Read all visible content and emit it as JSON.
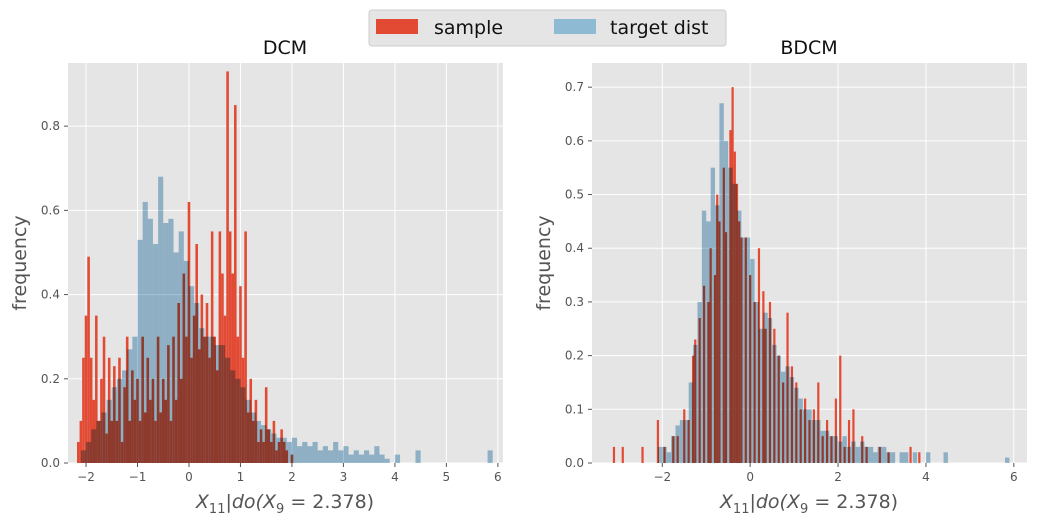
{
  "legend": {
    "items": [
      {
        "label": "sample",
        "color": "#E24A33"
      },
      {
        "label": "target dist",
        "color": "#8EBAD3"
      }
    ]
  },
  "chart_data": [
    {
      "type": "bar",
      "title": "DCM",
      "xlabel": "X_11 | do(X_9 = 2.378)",
      "xlabel_math": {
        "var": "X",
        "sub": "11",
        "mid": "|do(",
        "var2": "X",
        "sub2": "9",
        "tail": " = 2.378)"
      },
      "ylabel": "frequency",
      "xlim": [
        -2.35,
        6.1
      ],
      "ylim": [
        0,
        0.95
      ],
      "xticks": [
        -2,
        -1,
        0,
        1,
        2,
        3,
        4,
        5,
        6
      ],
      "yticks": [
        0.0,
        0.2,
        0.4,
        0.6,
        0.8
      ],
      "series": [
        {
          "name": "sample",
          "color": "#E24A33",
          "bins": [
            [
              -2.15,
              0.05
            ],
            [
              -2.1,
              0.1
            ],
            [
              -2.05,
              0.25
            ],
            [
              -2.0,
              0.35
            ],
            [
              -1.95,
              0.49
            ],
            [
              -1.9,
              0.25
            ],
            [
              -1.85,
              0.15
            ],
            [
              -1.8,
              0.35
            ],
            [
              -1.75,
              0.1
            ],
            [
              -1.7,
              0.2
            ],
            [
              -1.65,
              0.3
            ],
            [
              -1.6,
              0.07
            ],
            [
              -1.55,
              0.25
            ],
            [
              -1.5,
              0.1
            ],
            [
              -1.45,
              0.23
            ],
            [
              -1.4,
              0.1
            ],
            [
              -1.35,
              0.25
            ],
            [
              -1.3,
              0.05
            ],
            [
              -1.25,
              0.18
            ],
            [
              -1.2,
              0.3
            ],
            [
              -1.15,
              0.1
            ],
            [
              -1.1,
              0.22
            ],
            [
              -1.05,
              0.15
            ],
            [
              -1.0,
              0.2
            ],
            [
              -0.95,
              0.1
            ],
            [
              -0.9,
              0.3
            ],
            [
              -0.85,
              0.12
            ],
            [
              -0.8,
              0.25
            ],
            [
              -0.75,
              0.15
            ],
            [
              -0.7,
              0.2
            ],
            [
              -0.65,
              0.1
            ],
            [
              -0.6,
              0.3
            ],
            [
              -0.55,
              0.12
            ],
            [
              -0.5,
              0.2
            ],
            [
              -0.45,
              0.15
            ],
            [
              -0.4,
              0.28
            ],
            [
              -0.35,
              0.1
            ],
            [
              -0.3,
              0.3
            ],
            [
              -0.25,
              0.15
            ],
            [
              -0.2,
              0.38
            ],
            [
              -0.15,
              0.2
            ],
            [
              -0.1,
              0.45
            ],
            [
              -0.05,
              0.3
            ],
            [
              0.0,
              0.62
            ],
            [
              0.05,
              0.25
            ],
            [
              0.1,
              0.35
            ],
            [
              0.15,
              0.52
            ],
            [
              0.2,
              0.27
            ],
            [
              0.25,
              0.4
            ],
            [
              0.3,
              0.3
            ],
            [
              0.35,
              0.38
            ],
            [
              0.4,
              0.25
            ],
            [
              0.45,
              0.55
            ],
            [
              0.5,
              0.3
            ],
            [
              0.55,
              0.22
            ],
            [
              0.6,
              0.55
            ],
            [
              0.65,
              0.45
            ],
            [
              0.7,
              0.35
            ],
            [
              0.75,
              0.93
            ],
            [
              0.8,
              0.55
            ],
            [
              0.85,
              0.45
            ],
            [
              0.9,
              0.85
            ],
            [
              0.95,
              0.3
            ],
            [
              1.0,
              0.42
            ],
            [
              1.05,
              0.25
            ],
            [
              1.1,
              0.55
            ],
            [
              1.15,
              0.12
            ],
            [
              1.2,
              0.2
            ],
            [
              1.25,
              0.1
            ],
            [
              1.3,
              0.15
            ],
            [
              1.35,
              0.05
            ],
            [
              1.4,
              0.08
            ],
            [
              1.45,
              0.05
            ],
            [
              1.5,
              0.18
            ],
            [
              1.55,
              0.08
            ],
            [
              1.6,
              0.05
            ],
            [
              1.65,
              0.1
            ],
            [
              1.7,
              0.03
            ],
            [
              1.75,
              0.05
            ],
            [
              1.8,
              0.08
            ],
            [
              1.85,
              0.05
            ],
            [
              1.9,
              0.03
            ],
            [
              2.0,
              0.02
            ]
          ]
        },
        {
          "name": "target dist",
          "color": "#8EBAD3",
          "bins": [
            [
              -2.05,
              0.03
            ],
            [
              -1.95,
              0.05
            ],
            [
              -1.85,
              0.08
            ],
            [
              -1.75,
              0.1
            ],
            [
              -1.65,
              0.12
            ],
            [
              -1.55,
              0.15
            ],
            [
              -1.45,
              0.18
            ],
            [
              -1.35,
              0.2
            ],
            [
              -1.25,
              0.22
            ],
            [
              -1.15,
              0.27
            ],
            [
              -1.05,
              0.3
            ],
            [
              -0.95,
              0.53
            ],
            [
              -0.85,
              0.62
            ],
            [
              -0.75,
              0.58
            ],
            [
              -0.65,
              0.52
            ],
            [
              -0.55,
              0.68
            ],
            [
              -0.45,
              0.57
            ],
            [
              -0.35,
              0.58
            ],
            [
              -0.25,
              0.5
            ],
            [
              -0.15,
              0.55
            ],
            [
              -0.05,
              0.48
            ],
            [
              0.05,
              0.42
            ],
            [
              0.15,
              0.38
            ],
            [
              0.25,
              0.32
            ],
            [
              0.35,
              0.3
            ],
            [
              0.45,
              0.3
            ],
            [
              0.55,
              0.28
            ],
            [
              0.65,
              0.28
            ],
            [
              0.75,
              0.25
            ],
            [
              0.85,
              0.22
            ],
            [
              0.95,
              0.2
            ],
            [
              1.05,
              0.18
            ],
            [
              1.15,
              0.15
            ],
            [
              1.25,
              0.12
            ],
            [
              1.35,
              0.1
            ],
            [
              1.45,
              0.09
            ],
            [
              1.55,
              0.08
            ],
            [
              1.65,
              0.07
            ],
            [
              1.75,
              0.06
            ],
            [
              1.85,
              0.06
            ],
            [
              1.95,
              0.05
            ],
            [
              2.05,
              0.06
            ],
            [
              2.15,
              0.04
            ],
            [
              2.25,
              0.05
            ],
            [
              2.35,
              0.04
            ],
            [
              2.45,
              0.05
            ],
            [
              2.55,
              0.03
            ],
            [
              2.65,
              0.04
            ],
            [
              2.75,
              0.03
            ],
            [
              2.85,
              0.05
            ],
            [
              2.95,
              0.03
            ],
            [
              3.05,
              0.04
            ],
            [
              3.15,
              0.02
            ],
            [
              3.25,
              0.03
            ],
            [
              3.35,
              0.02
            ],
            [
              3.45,
              0.03
            ],
            [
              3.55,
              0.02
            ],
            [
              3.65,
              0.04
            ],
            [
              3.75,
              0.02
            ],
            [
              3.85,
              0.01
            ],
            [
              4.05,
              0.02
            ],
            [
              4.45,
              0.03
            ],
            [
              5.85,
              0.03
            ]
          ]
        }
      ]
    },
    {
      "type": "bar",
      "title": "BDCM",
      "xlabel": "X_11 | do(X_9 = 2.378)",
      "xlabel_math": {
        "var": "X",
        "sub": "11",
        "mid": "|do(",
        "var2": "X",
        "sub2": "9",
        "tail": " = 2.378)"
      },
      "ylabel": "frequency",
      "xlim": [
        -3.6,
        6.3
      ],
      "ylim": [
        0,
        0.745
      ],
      "xticks": [
        -2,
        0,
        2,
        4,
        6
      ],
      "yticks": [
        0.0,
        0.1,
        0.2,
        0.3,
        0.4,
        0.5,
        0.6,
        0.7
      ],
      "series": [
        {
          "name": "sample",
          "color": "#E24A33",
          "bins": [
            [
              -3.1,
              0.03
            ],
            [
              -2.9,
              0.03
            ],
            [
              -2.45,
              0.03
            ],
            [
              -2.1,
              0.08
            ],
            [
              -1.95,
              0.03
            ],
            [
              -1.75,
              0.05
            ],
            [
              -1.65,
              0.05
            ],
            [
              -1.5,
              0.1
            ],
            [
              -1.4,
              0.08
            ],
            [
              -1.3,
              0.2
            ],
            [
              -1.25,
              0.23
            ],
            [
              -1.15,
              0.27
            ],
            [
              -1.05,
              0.33
            ],
            [
              -0.95,
              0.3
            ],
            [
              -0.9,
              0.4
            ],
            [
              -0.8,
              0.35
            ],
            [
              -0.75,
              0.5
            ],
            [
              -0.7,
              0.45
            ],
            [
              -0.6,
              0.55
            ],
            [
              -0.55,
              0.43
            ],
            [
              -0.45,
              0.62
            ],
            [
              -0.4,
              0.7
            ],
            [
              -0.35,
              0.58
            ],
            [
              -0.3,
              0.52
            ],
            [
              -0.25,
              0.45
            ],
            [
              -0.2,
              0.42
            ],
            [
              -0.1,
              0.42
            ],
            [
              0.0,
              0.35
            ],
            [
              0.1,
              0.3
            ],
            [
              0.2,
              0.4
            ],
            [
              0.3,
              0.32
            ],
            [
              0.35,
              0.25
            ],
            [
              0.45,
              0.3
            ],
            [
              0.55,
              0.25
            ],
            [
              0.65,
              0.2
            ],
            [
              0.75,
              0.15
            ],
            [
              0.85,
              0.28
            ],
            [
              0.95,
              0.18
            ],
            [
              1.05,
              0.15
            ],
            [
              1.15,
              0.1
            ],
            [
              1.25,
              0.12
            ],
            [
              1.35,
              0.08
            ],
            [
              1.45,
              0.1
            ],
            [
              1.55,
              0.15
            ],
            [
              1.65,
              0.05
            ],
            [
              1.75,
              0.08
            ],
            [
              1.85,
              0.05
            ],
            [
              1.95,
              0.12
            ],
            [
              2.05,
              0.2
            ],
            [
              2.15,
              0.03
            ],
            [
              2.25,
              0.08
            ],
            [
              2.35,
              0.1
            ],
            [
              2.55,
              0.05
            ],
            [
              2.65,
              0.03
            ],
            [
              2.95,
              0.03
            ],
            [
              3.15,
              0.02
            ],
            [
              3.65,
              0.03
            ],
            [
              3.85,
              0.02
            ]
          ]
        },
        {
          "name": "target dist",
          "color": "#8EBAD3",
          "bins": [
            [
              -2.05,
              0.03
            ],
            [
              -1.95,
              0.03
            ],
            [
              -1.85,
              0.02
            ],
            [
              -1.75,
              0.05
            ],
            [
              -1.65,
              0.07
            ],
            [
              -1.55,
              0.08
            ],
            [
              -1.45,
              0.08
            ],
            [
              -1.35,
              0.15
            ],
            [
              -1.25,
              0.22
            ],
            [
              -1.15,
              0.3
            ],
            [
              -1.05,
              0.47
            ],
            [
              -0.95,
              0.45
            ],
            [
              -0.85,
              0.55
            ],
            [
              -0.75,
              0.48
            ],
            [
              -0.65,
              0.67
            ],
            [
              -0.55,
              0.6
            ],
            [
              -0.45,
              0.55
            ],
            [
              -0.35,
              0.52
            ],
            [
              -0.25,
              0.47
            ],
            [
              -0.15,
              0.42
            ],
            [
              -0.05,
              0.42
            ],
            [
              0.05,
              0.38
            ],
            [
              0.15,
              0.3
            ],
            [
              0.25,
              0.25
            ],
            [
              0.35,
              0.28
            ],
            [
              0.45,
              0.27
            ],
            [
              0.55,
              0.22
            ],
            [
              0.65,
              0.2
            ],
            [
              0.75,
              0.17
            ],
            [
              0.85,
              0.18
            ],
            [
              0.95,
              0.16
            ],
            [
              1.05,
              0.14
            ],
            [
              1.15,
              0.12
            ],
            [
              1.25,
              0.1
            ],
            [
              1.35,
              0.1
            ],
            [
              1.45,
              0.08
            ],
            [
              1.55,
              0.08
            ],
            [
              1.65,
              0.06
            ],
            [
              1.75,
              0.06
            ],
            [
              1.85,
              0.05
            ],
            [
              1.95,
              0.05
            ],
            [
              2.05,
              0.04
            ],
            [
              2.15,
              0.05
            ],
            [
              2.25,
              0.03
            ],
            [
              2.35,
              0.04
            ],
            [
              2.45,
              0.03
            ],
            [
              2.55,
              0.04
            ],
            [
              2.65,
              0.03
            ],
            [
              2.75,
              0.03
            ],
            [
              2.85,
              0.02
            ],
            [
              2.95,
              0.03
            ],
            [
              3.05,
              0.03
            ],
            [
              3.15,
              0.02
            ],
            [
              3.25,
              0.02
            ],
            [
              3.45,
              0.02
            ],
            [
              3.55,
              0.02
            ],
            [
              3.75,
              0.02
            ],
            [
              4.05,
              0.02
            ],
            [
              4.45,
              0.02
            ],
            [
              5.85,
              0.01
            ]
          ]
        }
      ]
    }
  ]
}
